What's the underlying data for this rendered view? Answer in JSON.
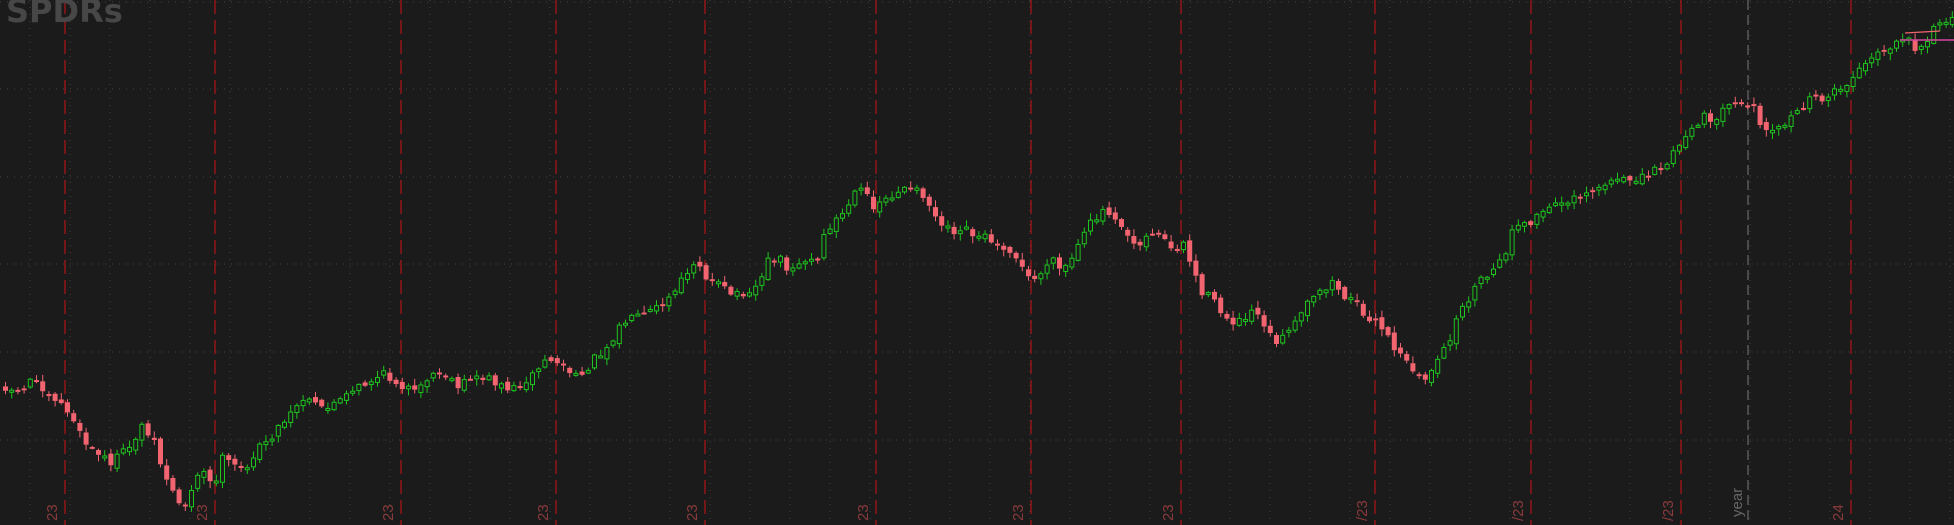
{
  "watermark": "SPDRs",
  "colors": {
    "background": "#1b1b1c",
    "grid": "#444444",
    "month_line": "#a3161a",
    "year_line": "#5a5a5a",
    "up": "#1fc41f",
    "down": "#f26470",
    "price_marker": "#d1479d",
    "label": "#8a3a3a",
    "year_label": "#666666",
    "watermark": "#474747"
  },
  "chart_data": {
    "type": "candlestick",
    "title": "",
    "grid": true,
    "year_marker_label": "year",
    "x_tick_labels": [
      "23",
      "23",
      "23",
      "23",
      "23",
      "23",
      "23",
      "23",
      "/23",
      "/23",
      "/23",
      "24"
    ],
    "price_marker": "last price",
    "note": "",
    "series": []
  }
}
